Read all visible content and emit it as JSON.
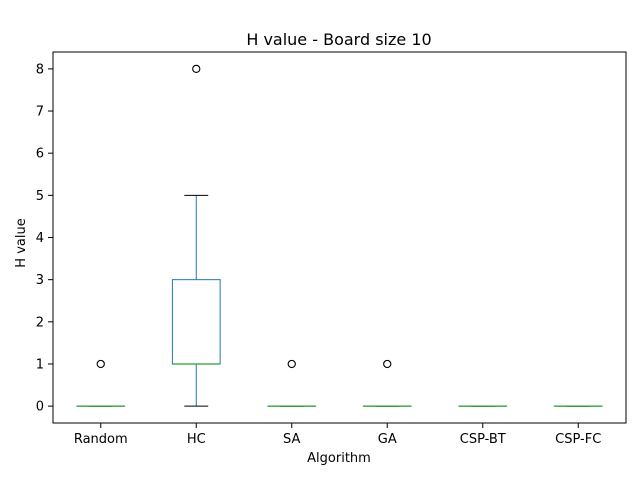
{
  "chart_data": {
    "type": "box",
    "title": "H value - Board size 10",
    "xlabel": "Algorithm",
    "ylabel": "H value",
    "ylim": [
      -0.4,
      8.4
    ],
    "yticks": [
      0,
      1,
      2,
      3,
      4,
      5,
      6,
      7,
      8
    ],
    "grid": false,
    "categories": [
      "Random",
      "HC",
      "SA",
      "GA",
      "CSP-BT",
      "CSP-FC"
    ],
    "boxes": [
      {
        "category": "Random",
        "whisker_low": 0,
        "q1": 0,
        "median": 0,
        "q3": 0,
        "whisker_high": 0,
        "outliers": [
          1
        ]
      },
      {
        "category": "HC",
        "whisker_low": 0,
        "q1": 1,
        "median": 1,
        "q3": 3,
        "whisker_high": 5,
        "outliers": [
          8
        ]
      },
      {
        "category": "SA",
        "whisker_low": 0,
        "q1": 0,
        "median": 0,
        "q3": 0,
        "whisker_high": 0,
        "outliers": [
          1
        ]
      },
      {
        "category": "GA",
        "whisker_low": 0,
        "q1": 0,
        "median": 0,
        "q3": 0,
        "whisker_high": 0,
        "outliers": [
          1
        ]
      },
      {
        "category": "CSP-BT",
        "whisker_low": 0,
        "q1": 0,
        "median": 0,
        "q3": 0,
        "whisker_high": 0,
        "outliers": []
      },
      {
        "category": "CSP-FC",
        "whisker_low": 0,
        "q1": 0,
        "median": 0,
        "q3": 0,
        "whisker_high": 0,
        "outliers": []
      }
    ],
    "colors": {
      "box": "#1f77b4",
      "median": "#2ca02c",
      "whisker": "#1f77b4",
      "cap": "#000000",
      "outlier": "#000000"
    }
  }
}
